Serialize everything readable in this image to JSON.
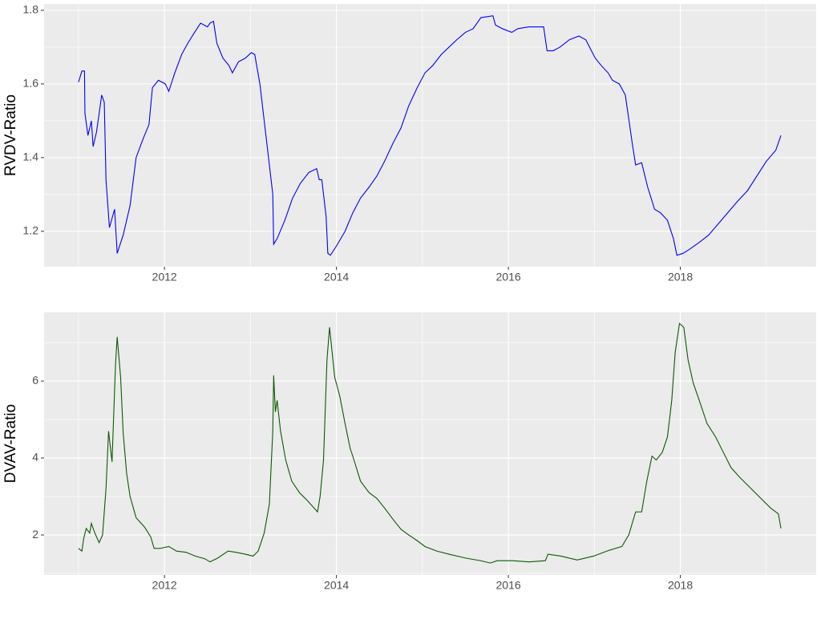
{
  "chart_data": [
    {
      "type": "line",
      "ylabel": "RVDV-Ratio",
      "color": "#0000ff",
      "grid": true,
      "xlim": [
        2010.6,
        2019.58
      ],
      "xticks": [
        2012,
        2014,
        2016,
        2018
      ],
      "xminor": [
        2011,
        2013,
        2015,
        2017,
        2019
      ],
      "ylim": [
        1.104,
        1.817
      ],
      "yticks": [
        1.2,
        1.4,
        1.6,
        1.8
      ],
      "yminor": [
        1.3,
        1.5,
        1.7
      ],
      "x": [
        2011.0,
        2011.04,
        2011.07,
        2011.075,
        2011.11,
        2011.15,
        2011.17,
        2011.21,
        2011.27,
        2011.3,
        2011.32,
        2011.36,
        2011.42,
        2011.45,
        2011.52,
        2011.6,
        2011.67,
        2011.75,
        2011.82,
        2011.86,
        2011.93,
        2012.01,
        2012.05,
        2012.12,
        2012.2,
        2012.27,
        2012.35,
        2012.42,
        2012.5,
        2012.53,
        2012.57,
        2012.61,
        2012.68,
        2012.75,
        2012.79,
        2012.86,
        2012.94,
        2013.01,
        2013.05,
        2013.11,
        2013.18,
        2013.26,
        2013.27,
        2013.31,
        2013.4,
        2013.49,
        2013.58,
        2013.68,
        2013.77,
        2013.8,
        2013.83,
        2013.88,
        2013.9,
        2013.93,
        2014.0,
        2014.1,
        2014.19,
        2014.28,
        2014.38,
        2014.47,
        2014.56,
        2014.66,
        2014.75,
        2014.84,
        2014.94,
        2015.03,
        2015.12,
        2015.22,
        2015.31,
        2015.4,
        2015.5,
        2015.59,
        2015.68,
        2015.82,
        2015.85,
        2015.93,
        2016.04,
        2016.11,
        2016.24,
        2016.41,
        2016.45,
        2016.52,
        2016.6,
        2016.71,
        2016.82,
        2016.9,
        2017.01,
        2017.08,
        2017.16,
        2017.21,
        2017.29,
        2017.36,
        2017.44,
        2017.48,
        2017.55,
        2017.62,
        2017.7,
        2017.77,
        2017.85,
        2017.92,
        2017.96,
        2018.03,
        2018.1,
        2018.22,
        2018.33,
        2018.44,
        2018.55,
        2018.66,
        2018.78,
        2018.89,
        2019.0,
        2019.11,
        2019.17
      ],
      "values": [
        1.605,
        1.635,
        1.635,
        1.52,
        1.46,
        1.5,
        1.43,
        1.47,
        1.57,
        1.55,
        1.34,
        1.21,
        1.26,
        1.14,
        1.19,
        1.27,
        1.4,
        1.45,
        1.49,
        1.59,
        1.61,
        1.6,
        1.58,
        1.63,
        1.68,
        1.71,
        1.74,
        1.765,
        1.755,
        1.765,
        1.77,
        1.71,
        1.67,
        1.65,
        1.63,
        1.66,
        1.67,
        1.685,
        1.68,
        1.6,
        1.46,
        1.3,
        1.165,
        1.18,
        1.23,
        1.29,
        1.33,
        1.36,
        1.37,
        1.34,
        1.34,
        1.24,
        1.14,
        1.135,
        1.16,
        1.2,
        1.25,
        1.29,
        1.32,
        1.35,
        1.39,
        1.44,
        1.48,
        1.54,
        1.59,
        1.63,
        1.65,
        1.68,
        1.7,
        1.72,
        1.74,
        1.75,
        1.78,
        1.785,
        1.76,
        1.75,
        1.74,
        1.75,
        1.755,
        1.755,
        1.69,
        1.69,
        1.7,
        1.72,
        1.73,
        1.72,
        1.67,
        1.65,
        1.63,
        1.61,
        1.6,
        1.57,
        1.44,
        1.38,
        1.386,
        1.32,
        1.26,
        1.25,
        1.23,
        1.18,
        1.135,
        1.14,
        1.15,
        1.17,
        1.19,
        1.22,
        1.25,
        1.28,
        1.31,
        1.35,
        1.39,
        1.42,
        1.46
      ]
    },
    {
      "type": "line",
      "ylabel": "DVAV-Ratio",
      "color": "#0b5a00",
      "grid": true,
      "xlim": [
        2010.6,
        2019.58
      ],
      "xticks": [
        2012,
        2014,
        2016,
        2018
      ],
      "xminor": [
        2011,
        2013,
        2015,
        2017,
        2019
      ],
      "ylim": [
        0.96,
        7.79
      ],
      "yticks": [
        2,
        4,
        6
      ],
      "yminor": [
        1,
        3,
        5,
        7
      ],
      "x": [
        2011.0,
        2011.04,
        2011.06,
        2011.09,
        2011.13,
        2011.15,
        2011.19,
        2011.24,
        2011.28,
        2011.32,
        2011.35,
        2011.39,
        2011.43,
        2011.45,
        2011.49,
        2011.52,
        2011.56,
        2011.6,
        2011.67,
        2011.77,
        2011.84,
        2011.88,
        2011.95,
        2012.05,
        2012.14,
        2012.25,
        2012.36,
        2012.47,
        2012.53,
        2012.62,
        2012.74,
        2012.83,
        2012.94,
        2013.03,
        2013.09,
        2013.16,
        2013.22,
        2013.26,
        2013.27,
        2013.29,
        2013.31,
        2013.35,
        2013.41,
        2013.48,
        2013.57,
        2013.66,
        2013.78,
        2013.81,
        2013.85,
        2013.89,
        2013.92,
        2013.95,
        2013.98,
        2014.04,
        2014.1,
        2014.16,
        2014.19,
        2014.28,
        2014.38,
        2014.47,
        2014.56,
        2014.66,
        2014.75,
        2014.84,
        2014.94,
        2015.03,
        2015.17,
        2015.31,
        2015.5,
        2015.68,
        2015.79,
        2015.87,
        2016.05,
        2016.24,
        2016.43,
        2016.46,
        2016.61,
        2016.8,
        2016.99,
        2017.17,
        2017.32,
        2017.4,
        2017.48,
        2017.55,
        2017.61,
        2017.67,
        2017.72,
        2017.79,
        2017.85,
        2017.9,
        2017.94,
        2017.99,
        2018.04,
        2018.09,
        2018.15,
        2018.22,
        2018.31,
        2018.41,
        2018.5,
        2018.59,
        2018.69,
        2018.78,
        2018.87,
        2018.96,
        2019.05,
        2019.14,
        2019.17
      ],
      "values": [
        1.65,
        1.58,
        1.9,
        2.17,
        2.05,
        2.3,
        2.05,
        1.8,
        2.0,
        3.2,
        4.7,
        3.9,
        6.4,
        7.15,
        6.1,
        4.65,
        3.6,
        3.0,
        2.45,
        2.2,
        1.95,
        1.65,
        1.65,
        1.7,
        1.58,
        1.55,
        1.45,
        1.38,
        1.3,
        1.4,
        1.58,
        1.55,
        1.5,
        1.45,
        1.58,
        2.05,
        2.8,
        4.7,
        6.15,
        5.2,
        5.5,
        4.7,
        3.95,
        3.4,
        3.1,
        2.9,
        2.6,
        3.0,
        3.95,
        6.55,
        7.4,
        6.75,
        6.1,
        5.6,
        4.9,
        4.25,
        4.05,
        3.4,
        3.1,
        2.95,
        2.7,
        2.4,
        2.15,
        2.0,
        1.85,
        1.7,
        1.58,
        1.5,
        1.4,
        1.33,
        1.27,
        1.33,
        1.33,
        1.3,
        1.33,
        1.5,
        1.45,
        1.35,
        1.45,
        1.6,
        1.7,
        2.0,
        2.6,
        2.6,
        3.4,
        4.05,
        3.95,
        4.15,
        4.55,
        5.5,
        6.75,
        7.5,
        7.4,
        6.55,
        5.95,
        5.5,
        4.9,
        4.55,
        4.15,
        3.75,
        3.5,
        3.3,
        3.1,
        2.9,
        2.7,
        2.55,
        2.17
      ]
    }
  ]
}
